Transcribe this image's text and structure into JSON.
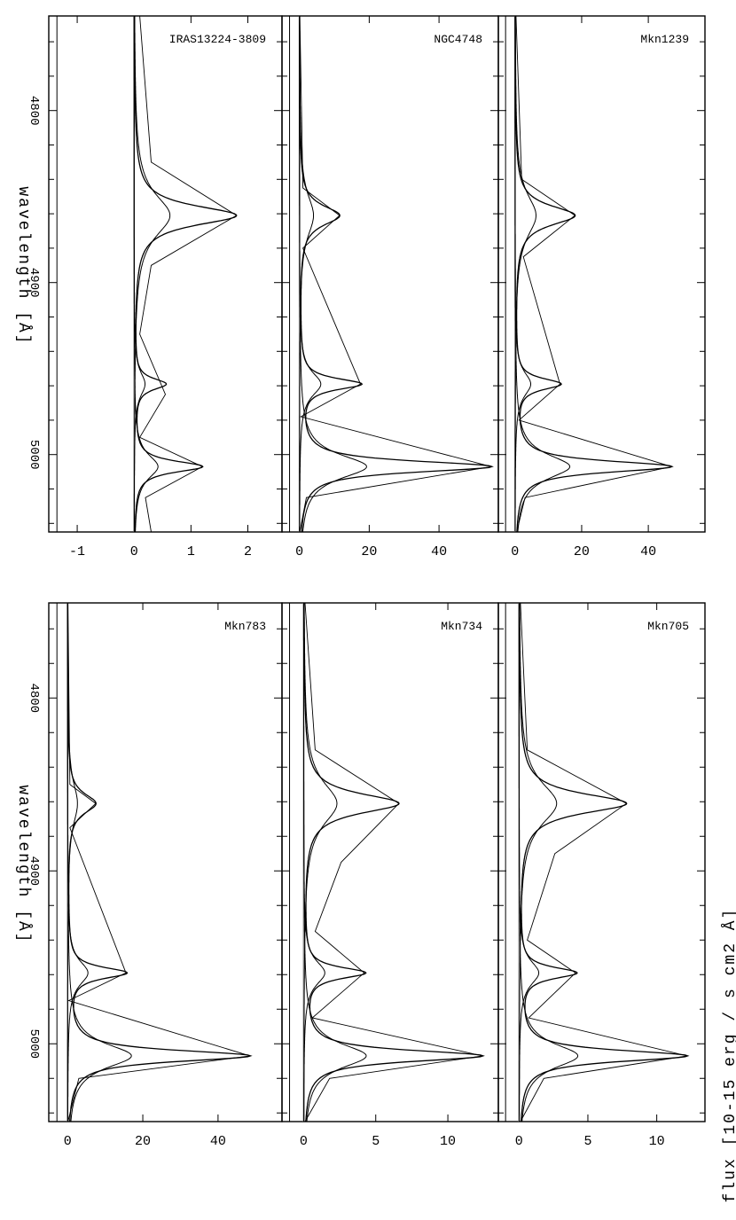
{
  "figure": {
    "ylabel": "flux   [10-15 erg / s cm2 Å]",
    "xlabel": "wavelength [Å]"
  },
  "chart_data": [
    {
      "type": "line",
      "title": "Mkn705",
      "x_ticks": [
        "4800",
        "4900",
        "5000"
      ],
      "y_ticks": [
        "0",
        "5",
        "10"
      ],
      "ylim": [
        -1.5,
        13.5
      ],
      "xlim": [
        4745,
        5045
      ],
      "series": [
        {
          "values": [
            [
              4745,
              0.1
            ],
            [
              4830,
              0.6
            ],
            [
              4861,
              7.8
            ],
            [
              4890,
              2.6
            ],
            [
              4940,
              0.6
            ],
            [
              4959,
              4.1
            ],
            [
              4985,
              0.7
            ],
            [
              5007,
              12.2
            ],
            [
              5020,
              1.8
            ],
            [
              5045,
              0.1
            ]
          ]
        }
      ]
    },
    {
      "type": "line",
      "title": "Mkn734",
      "x_ticks": [
        "4800",
        "4900",
        "5000"
      ],
      "y_ticks": [
        "0",
        "5",
        "10"
      ],
      "ylim": [
        -1.5,
        13.5
      ],
      "xlim": [
        4745,
        5045
      ],
      "series": [
        {
          "values": [
            [
              4745,
              0.1
            ],
            [
              4830,
              0.8
            ],
            [
              4861,
              6.6
            ],
            [
              4895,
              2.6
            ],
            [
              4935,
              0.8
            ],
            [
              4959,
              4.2
            ],
            [
              4985,
              0.6
            ],
            [
              5007,
              12.4
            ],
            [
              5020,
              1.8
            ],
            [
              5045,
              0.1
            ]
          ]
        }
      ]
    },
    {
      "type": "line",
      "title": "Mkn783",
      "x_ticks": [
        "4800",
        "4900",
        "5000"
      ],
      "y_ticks": [
        "0",
        "20",
        "40"
      ],
      "ylim": [
        -5,
        57
      ],
      "xlim": [
        4745,
        5045
      ],
      "series": [
        {
          "values": [
            [
              4745,
              0.1
            ],
            [
              4850,
              0.6
            ],
            [
              4861,
              7.5
            ],
            [
              4875,
              0.6
            ],
            [
              4959,
              15.5
            ],
            [
              4975,
              0.3
            ],
            [
              5007,
              48.5
            ],
            [
              5020,
              3
            ],
            [
              5045,
              0.1
            ]
          ]
        }
      ]
    },
    {
      "type": "line",
      "title": "Mkn1239",
      "x_ticks": [
        "4800",
        "4900",
        "5000"
      ],
      "y_ticks": [
        "0",
        "20",
        "40"
      ],
      "ylim": [
        -5,
        57
      ],
      "xlim": [
        4745,
        5045
      ],
      "series": [
        {
          "values": [
            [
              4745,
              0.3
            ],
            [
              4840,
              2
            ],
            [
              4861,
              18
            ],
            [
              4885,
              2.5
            ],
            [
              4959,
              13.5
            ],
            [
              4980,
              1.2
            ],
            [
              5007,
              47
            ],
            [
              5025,
              3
            ],
            [
              5045,
              0.5
            ]
          ]
        }
      ]
    },
    {
      "type": "line",
      "title": "NGC4748",
      "x_ticks": [
        "4800",
        "4900",
        "5000"
      ],
      "y_ticks": [
        "0",
        "20",
        "40"
      ],
      "ylim": [
        -5,
        57
      ],
      "xlim": [
        4745,
        5045
      ],
      "series": [
        {
          "values": [
            [
              4745,
              0.1
            ],
            [
              4845,
              1
            ],
            [
              4861,
              11.5
            ],
            [
              4880,
              1
            ],
            [
              4959,
              17.5
            ],
            [
              4978,
              0.4
            ],
            [
              5007,
              55
            ],
            [
              5025,
              2
            ],
            [
              5045,
              0.1
            ]
          ]
        }
      ]
    },
    {
      "type": "line",
      "title": "IRAS13224-3809",
      "x_ticks": [
        "4800",
        "4900",
        "5000"
      ],
      "y_ticks": [
        "-1",
        "0",
        "1",
        "2"
      ],
      "ylim": [
        -1.5,
        2.6
      ],
      "xlim": [
        4745,
        5045
      ],
      "series": [
        {
          "values": [
            [
              4745,
              0.1
            ],
            [
              4830,
              0.3
            ],
            [
              4861,
              1.8
            ],
            [
              4890,
              0.3
            ],
            [
              4930,
              0.1
            ],
            [
              4965,
              0.55
            ],
            [
              4990,
              0.1
            ],
            [
              5007,
              1.2
            ],
            [
              5025,
              0.2
            ],
            [
              5045,
              0.3
            ]
          ]
        }
      ]
    }
  ]
}
